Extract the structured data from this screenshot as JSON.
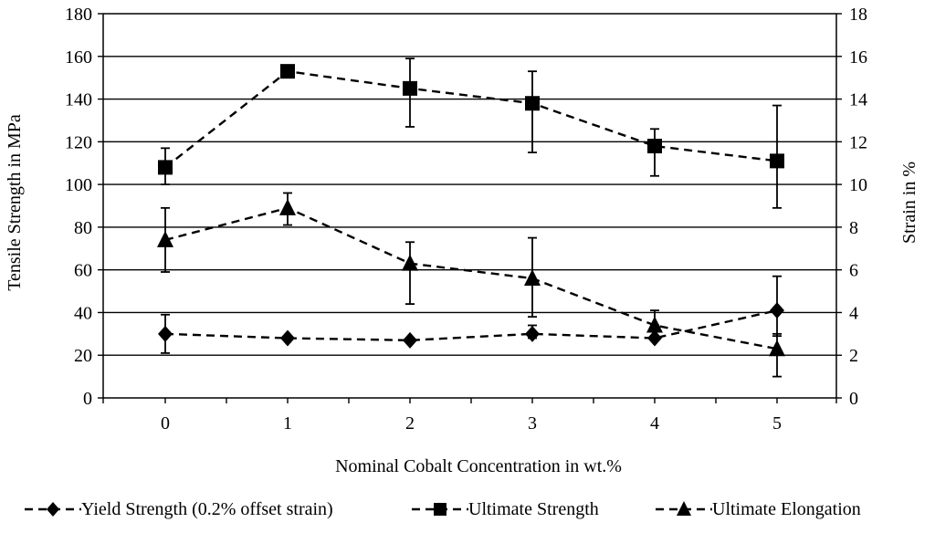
{
  "chart_data": {
    "type": "line",
    "title": "",
    "xlabel": "Nominal Cobalt Concentration in wt.%",
    "ylabel": "Tensile Strength in MPa",
    "y2label": "Strain in %",
    "x": [
      0,
      1,
      2,
      3,
      4,
      5
    ],
    "x_tick_labels": [
      "0",
      "1",
      "2",
      "3",
      "4",
      "5"
    ],
    "ylim": [
      0,
      180
    ],
    "y_ticks": [
      0,
      20,
      40,
      60,
      80,
      100,
      120,
      140,
      160,
      180
    ],
    "y2lim": [
      0,
      18
    ],
    "y2_ticks": [
      0,
      2,
      4,
      6,
      8,
      10,
      12,
      14,
      16,
      18
    ],
    "grid": "horizontal",
    "legend_position": "bottom",
    "series": [
      {
        "name": "Yield Strength (0.2% offset strain)",
        "key": "yield",
        "axis": "left",
        "marker": "diamond",
        "values": [
          30,
          28,
          27,
          30,
          28,
          41
        ],
        "error_low": [
          21,
          28,
          27,
          28,
          28,
          29
        ],
        "error_high": [
          39,
          28,
          27,
          34,
          28,
          57
        ]
      },
      {
        "name": "Ultimate Strength",
        "key": "ultimate",
        "axis": "left",
        "marker": "square",
        "values": [
          108,
          153,
          145,
          138,
          118,
          111
        ],
        "error_low": [
          100,
          153,
          127,
          115,
          104,
          89
        ],
        "error_high": [
          117,
          153,
          159,
          153,
          126,
          137
        ]
      },
      {
        "name": "Ultimate Elongation",
        "key": "elongation",
        "axis": "right",
        "marker": "triangle",
        "values": [
          7.4,
          8.9,
          6.3,
          5.6,
          3.4,
          2.3
        ],
        "error_low": [
          5.9,
          8.1,
          4.4,
          3.8,
          3.4,
          1.0
        ],
        "error_high": [
          8.9,
          9.6,
          7.3,
          7.5,
          4.1,
          3.0
        ]
      }
    ]
  }
}
